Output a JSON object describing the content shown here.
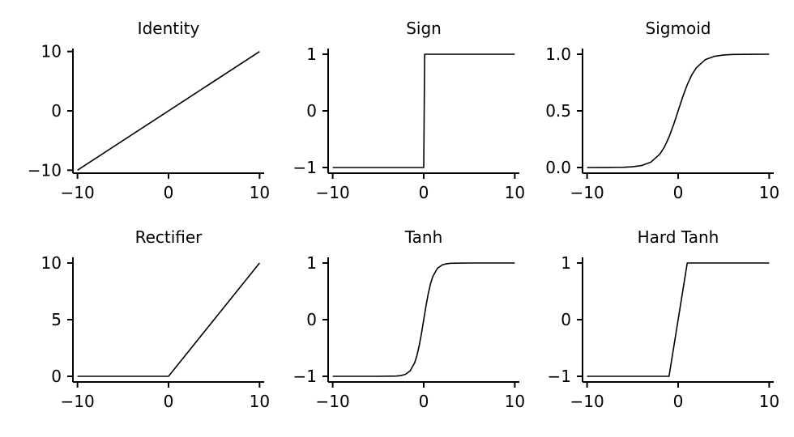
{
  "chart_data": [
    {
      "type": "line",
      "title": "Identity",
      "xlim": [
        -10.5,
        10.5
      ],
      "ylim": [
        -10.5,
        10.5
      ],
      "xticks": [
        -10,
        0,
        10
      ],
      "xtick_labels": [
        "−10",
        "0",
        "10"
      ],
      "yticks": [
        -10,
        0,
        10
      ],
      "ytick_labels": [
        "−10",
        "0",
        "10"
      ],
      "grid": false,
      "x": [
        -10,
        10
      ],
      "y": [
        -10,
        10
      ]
    },
    {
      "type": "line",
      "title": "Sign",
      "xlim": [
        -10.5,
        10.5
      ],
      "ylim": [
        -1.1,
        1.1
      ],
      "xticks": [
        -10,
        0,
        10
      ],
      "xtick_labels": [
        "−10",
        "0",
        "10"
      ],
      "yticks": [
        -1,
        0,
        1
      ],
      "ytick_labels": [
        "−1",
        "0",
        "1"
      ],
      "grid": false,
      "x": [
        -10,
        0,
        0.1,
        10
      ],
      "y": [
        -1,
        -1,
        1,
        1
      ]
    },
    {
      "type": "line",
      "title": "Sigmoid",
      "xlim": [
        -10.5,
        10.5
      ],
      "ylim": [
        -0.05,
        1.05
      ],
      "xticks": [
        -10,
        0,
        10
      ],
      "xtick_labels": [
        "−10",
        "0",
        "10"
      ],
      "yticks": [
        0,
        0.5,
        1
      ],
      "ytick_labels": [
        "0.0",
        "0.5",
        "1.0"
      ],
      "grid": false,
      "x": [
        -10,
        -8,
        -6,
        -5,
        -4,
        -3,
        -2,
        -1.5,
        -1,
        -0.5,
        0,
        0.5,
        1,
        1.5,
        2,
        3,
        4,
        5,
        6,
        8,
        10
      ],
      "y": [
        0.0,
        0.0003,
        0.0025,
        0.0067,
        0.018,
        0.047,
        0.119,
        0.182,
        0.269,
        0.378,
        0.5,
        0.622,
        0.731,
        0.818,
        0.881,
        0.953,
        0.982,
        0.993,
        0.998,
        0.9997,
        1.0
      ]
    },
    {
      "type": "line",
      "title": "Rectifier",
      "xlim": [
        -10.5,
        10.5
      ],
      "ylim": [
        -0.5,
        10.5
      ],
      "xticks": [
        -10,
        0,
        10
      ],
      "xtick_labels": [
        "−10",
        "0",
        "10"
      ],
      "yticks": [
        0,
        5,
        10
      ],
      "ytick_labels": [
        "0",
        "5",
        "10"
      ],
      "grid": false,
      "x": [
        -10,
        0,
        10
      ],
      "y": [
        0,
        0,
        10
      ]
    },
    {
      "type": "line",
      "title": "Tanh",
      "xlim": [
        -10.5,
        10.5
      ],
      "ylim": [
        -1.1,
        1.1
      ],
      "xticks": [
        -10,
        0,
        10
      ],
      "xtick_labels": [
        "−10",
        "0",
        "10"
      ],
      "yticks": [
        -1,
        0,
        1
      ],
      "ytick_labels": [
        "−1",
        "0",
        "1"
      ],
      "grid": false,
      "x": [
        -10,
        -5,
        -3,
        -2.5,
        -2,
        -1.5,
        -1,
        -0.75,
        -0.5,
        -0.25,
        0,
        0.25,
        0.5,
        0.75,
        1,
        1.5,
        2,
        2.5,
        3,
        5,
        10
      ],
      "y": [
        -1.0,
        -0.9999,
        -0.995,
        -0.987,
        -0.964,
        -0.905,
        -0.762,
        -0.635,
        -0.462,
        -0.245,
        0.0,
        0.245,
        0.462,
        0.635,
        0.762,
        0.905,
        0.964,
        0.987,
        0.995,
        0.9999,
        1.0
      ]
    },
    {
      "type": "line",
      "title": "Hard Tanh",
      "xlim": [
        -10.5,
        10.5
      ],
      "ylim": [
        -1.1,
        1.1
      ],
      "xticks": [
        -10,
        0,
        10
      ],
      "xtick_labels": [
        "−10",
        "0",
        "10"
      ],
      "yticks": [
        -1,
        0,
        1
      ],
      "ytick_labels": [
        "−1",
        "0",
        "1"
      ],
      "grid": false,
      "x": [
        -10,
        -1,
        1,
        10
      ],
      "y": [
        -1,
        -1,
        1,
        1
      ]
    }
  ]
}
